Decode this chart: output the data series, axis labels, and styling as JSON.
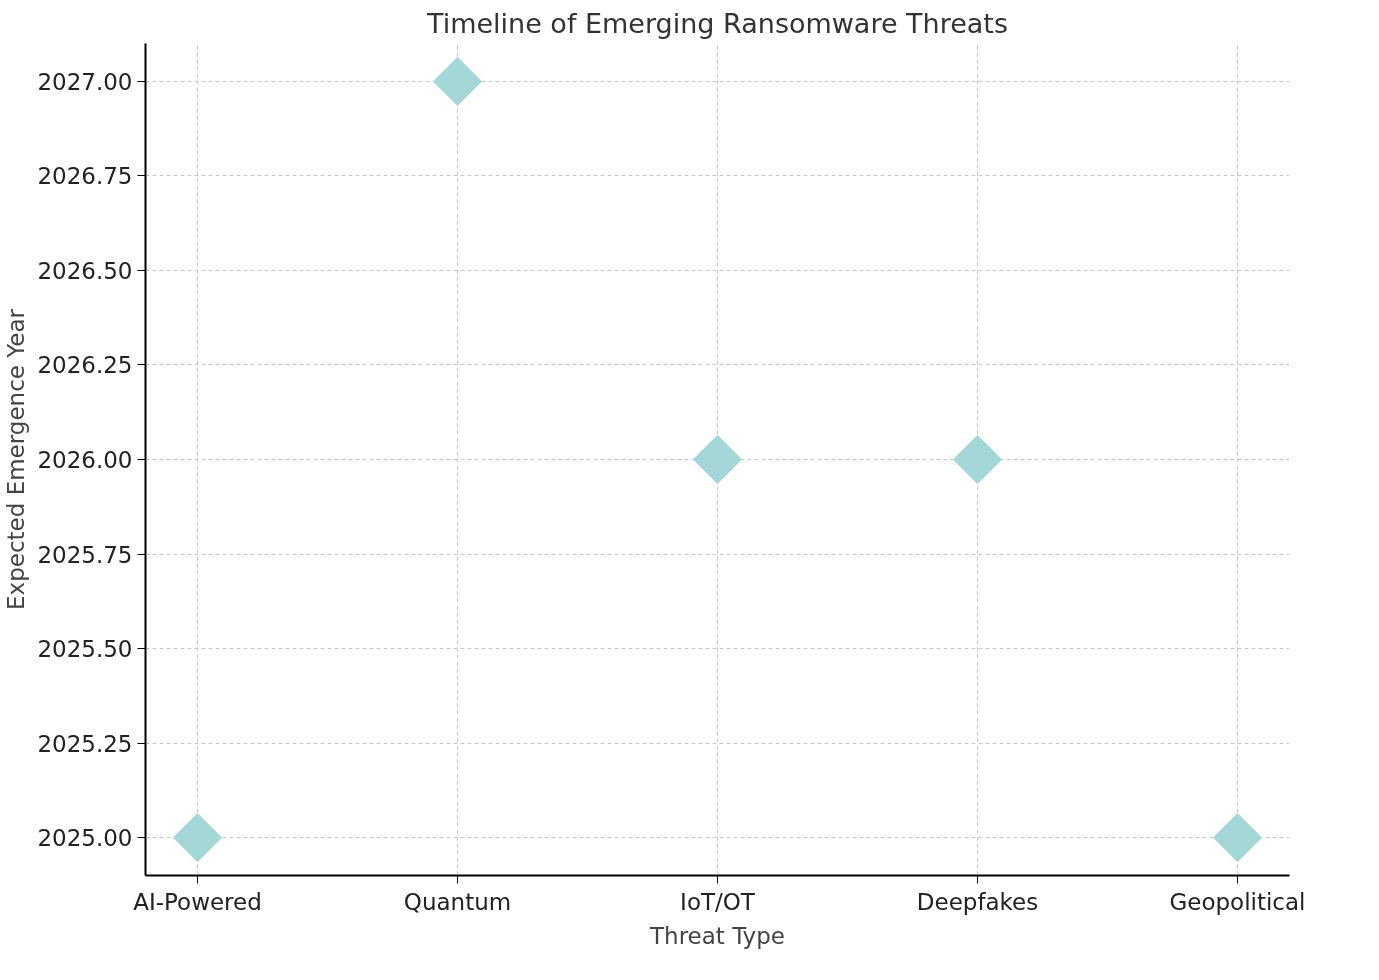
{
  "chart_data": {
    "type": "scatter",
    "title": "Timeline of Emerging Ransomware Threats",
    "xlabel": "Threat Type",
    "ylabel": "Expected Emergence Year",
    "categories": [
      "AI-Powered",
      "Quantum",
      "IoT/OT",
      "Deepfakes",
      "Geopolitical"
    ],
    "values": [
      2025,
      2027,
      2026,
      2026,
      2025
    ],
    "color": "#a4d7d7",
    "marker": "diamond",
    "ylim": [
      2024.9,
      2027.1
    ],
    "yticks": [
      {
        "value": 2025,
        "label": "2025.00"
      },
      {
        "value": 2025.25,
        "label": "2025.25"
      },
      {
        "value": 2025.5,
        "label": "2025.50"
      },
      {
        "value": 2025.75,
        "label": "2025.75"
      },
      {
        "value": 2026,
        "label": "2026.00"
      },
      {
        "value": 2026.25,
        "label": "2026.25"
      },
      {
        "value": 2026.5,
        "label": "2026.50"
      },
      {
        "value": 2026.75,
        "label": "2026.75"
      },
      {
        "value": 2027,
        "label": "2027.00"
      }
    ],
    "grid": true
  }
}
